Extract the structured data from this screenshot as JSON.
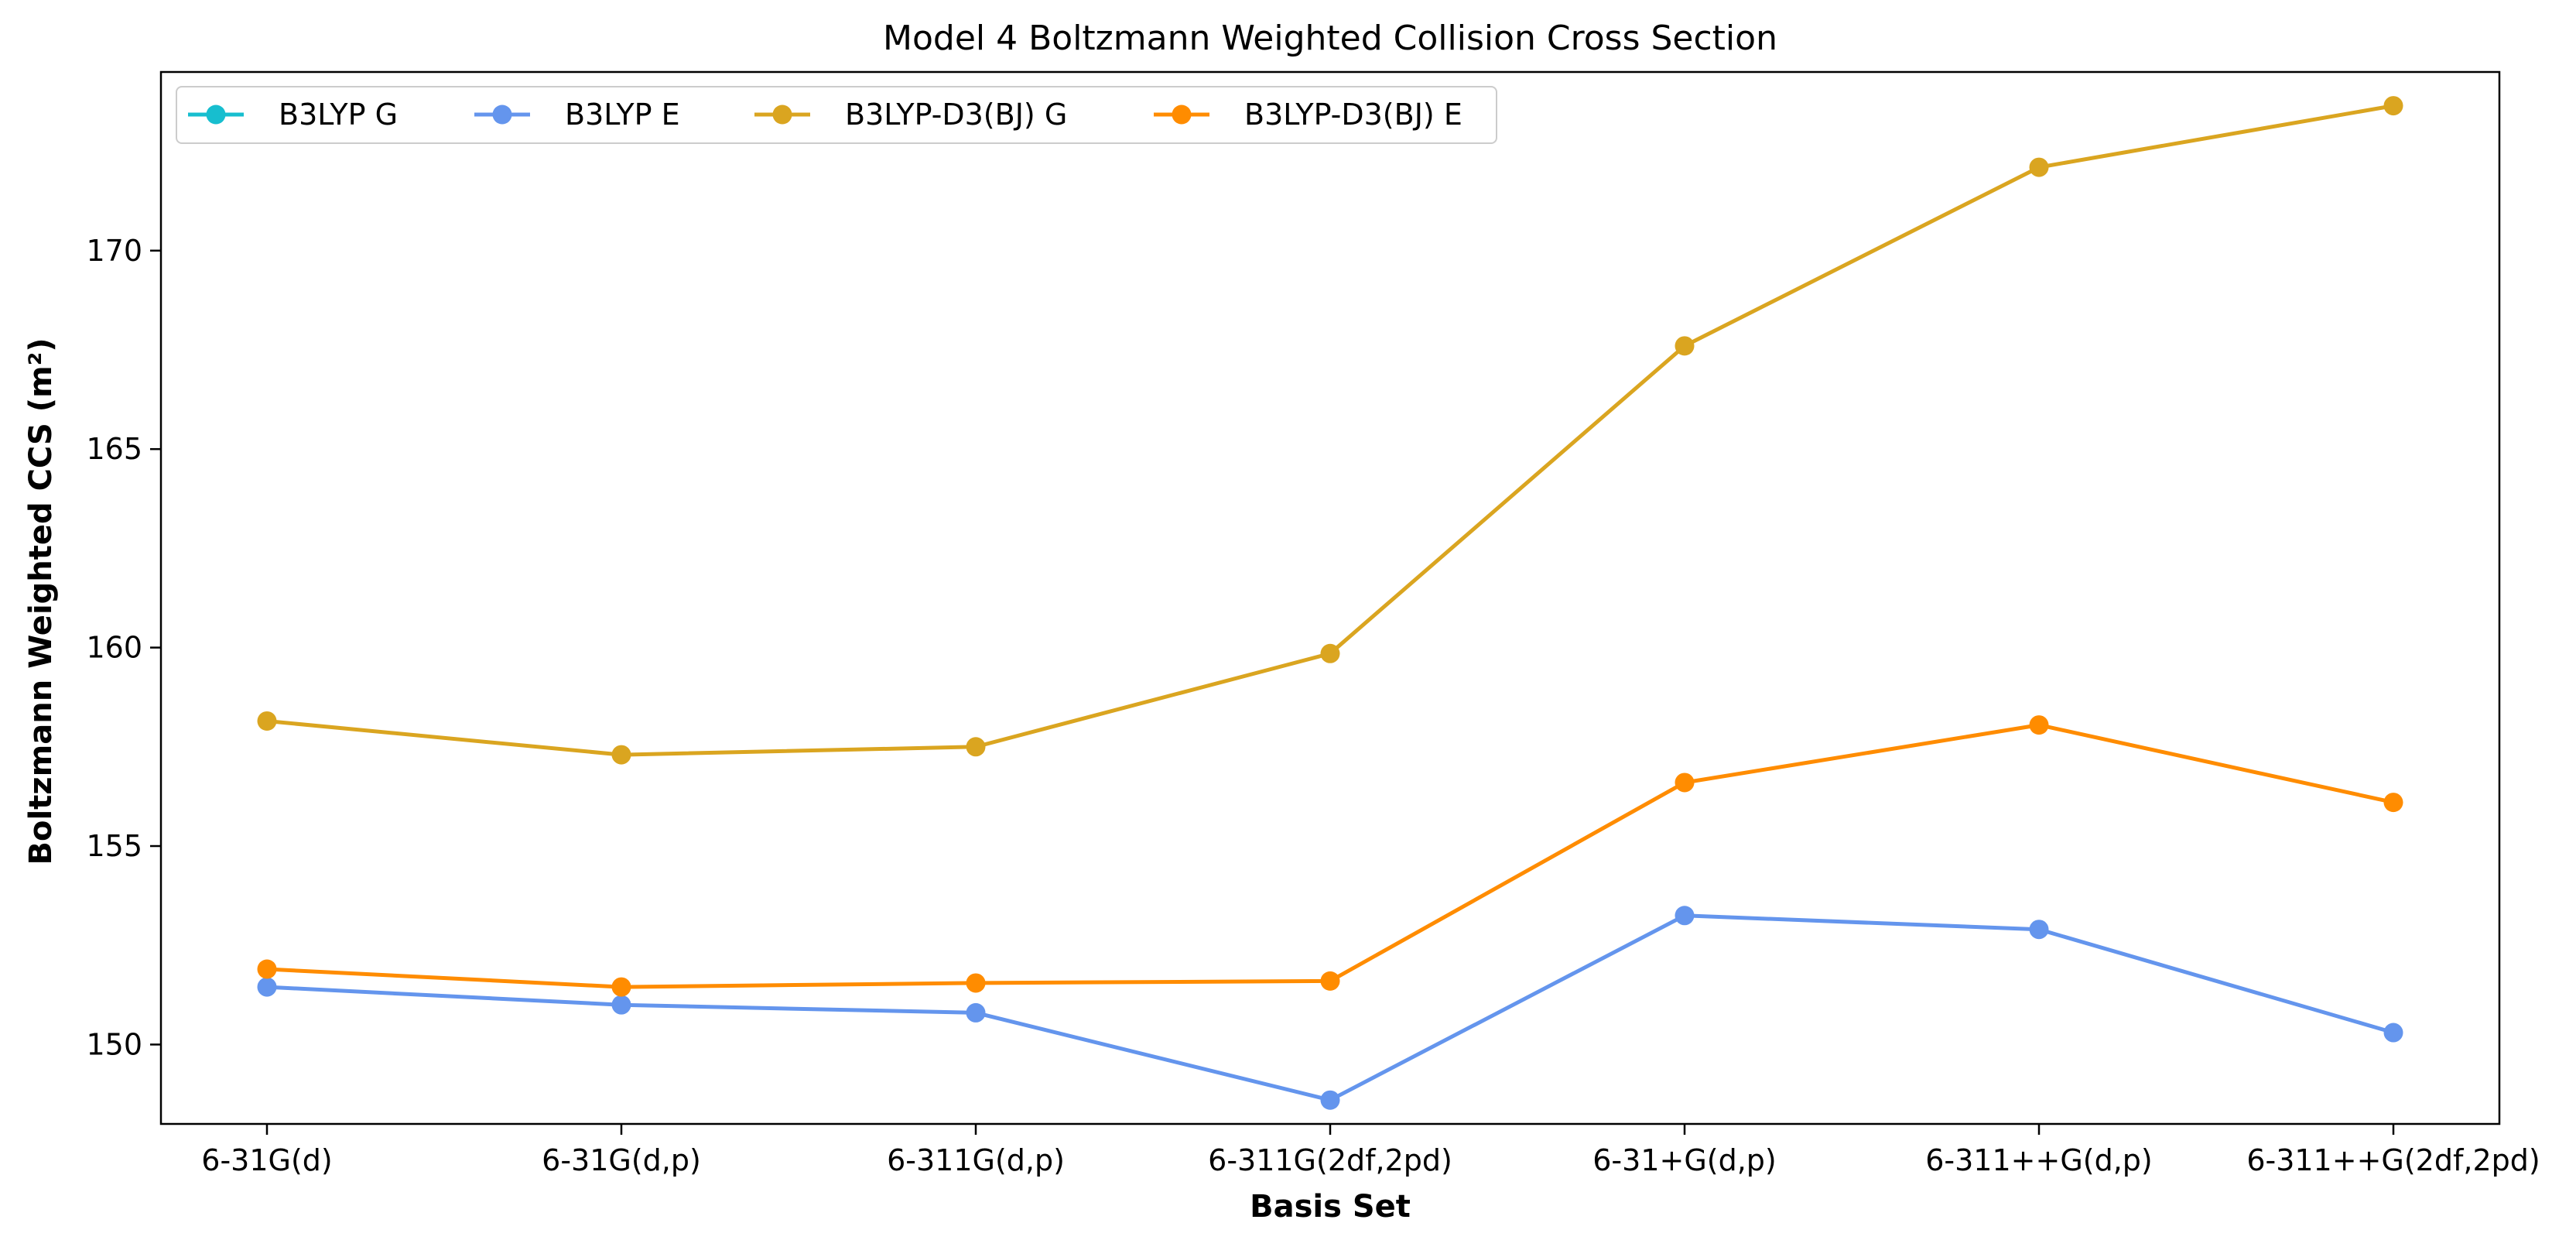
{
  "chart_data": {
    "type": "line",
    "title": "Model 4 Boltzmann Weighted Collision Cross Section",
    "xlabel": "Basis Set",
    "ylabel": "Boltzmann Weighted CCS (m²)",
    "categories": [
      "6-31G(d)",
      "6-31G(d,p)",
      "6-311G(d,p)",
      "6-311G(2df,2pd)",
      "6-31+G(d,p)",
      "6-311++G(d,p)",
      "6-311++G(2df,2pd)"
    ],
    "ylim": [
      148.0,
      174.5
    ],
    "yticks": [
      150,
      155,
      160,
      165,
      170
    ],
    "grid": false,
    "legend_position": "top-left",
    "series": [
      {
        "name": "B3LYP G",
        "color": "#17becf",
        "values": [
          null,
          null,
          null,
          null,
          null,
          null,
          null
        ]
      },
      {
        "name": "B3LYP E",
        "color": "#6495ed",
        "values": [
          151.45,
          151.0,
          150.8,
          148.6,
          153.25,
          152.9,
          150.3
        ]
      },
      {
        "name": "B3LYP-D3(BJ) G",
        "color": "#daa520",
        "values": [
          158.15,
          157.3,
          157.5,
          159.85,
          167.6,
          172.1,
          173.65
        ]
      },
      {
        "name": "B3LYP-D3(BJ) E",
        "color": "#ff8c00",
        "values": [
          151.9,
          151.45,
          151.55,
          151.6,
          156.6,
          158.05,
          156.1
        ]
      }
    ]
  }
}
